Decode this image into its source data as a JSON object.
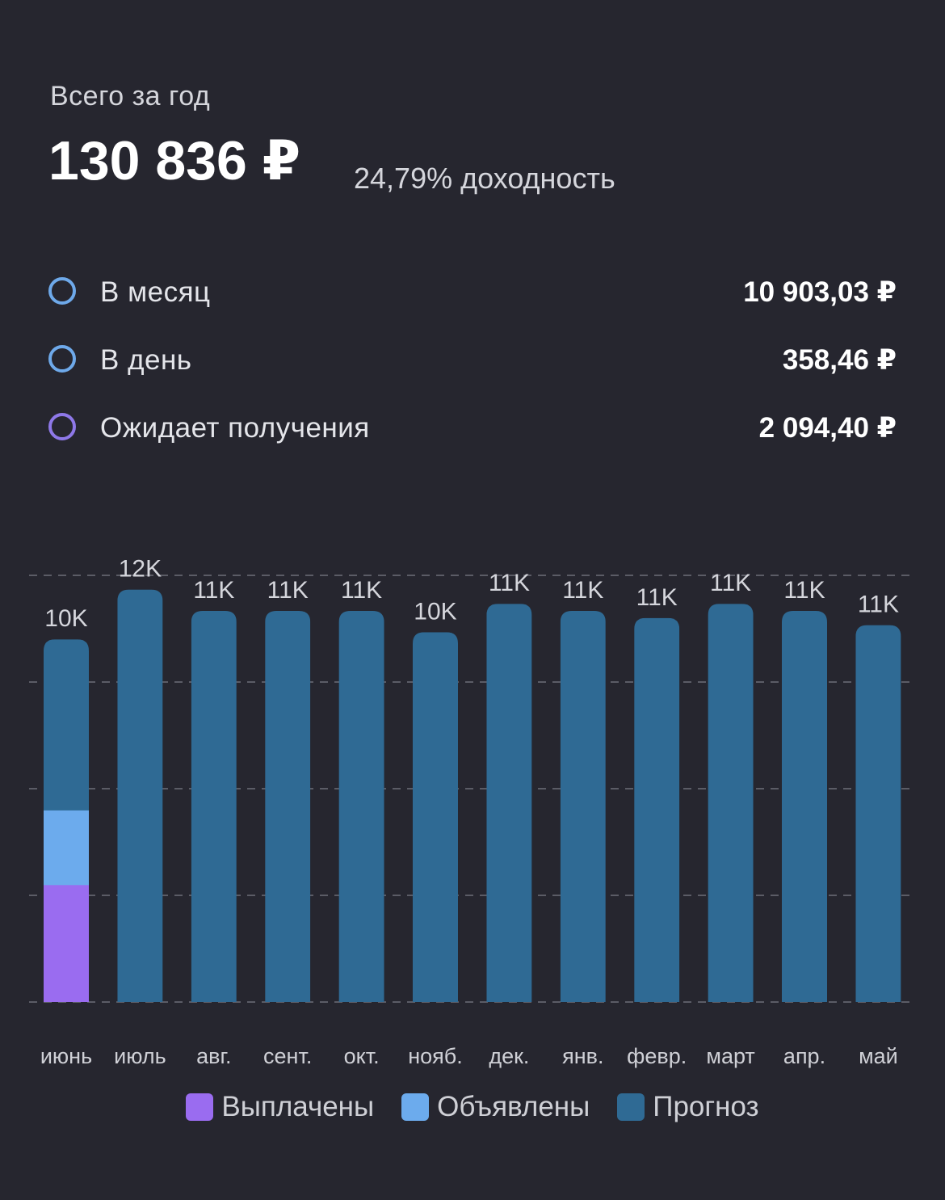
{
  "summary": {
    "title": "Всего за год",
    "total": "130 836 ₽",
    "yield": "24,79% доходность"
  },
  "stats": [
    {
      "label": "В месяц",
      "value": "10 903,03 ₽",
      "ring_color": "#6ea9ea"
    },
    {
      "label": "В день",
      "value": "358,46 ₽",
      "ring_color": "#6ea9ea"
    },
    {
      "label": "Ожидает получения",
      "value": "2 094,40 ₽",
      "ring_color": "#8e78e8"
    }
  ],
  "chart_data": {
    "type": "bar",
    "stacked": true,
    "categories": [
      "июнь",
      "июль",
      "авг.",
      "сент.",
      "окт.",
      "нояб.",
      "дек.",
      "янв.",
      "февр.",
      "март",
      "апр.",
      "май"
    ],
    "value_labels": [
      "10K",
      "12K",
      "11K",
      "11K",
      "11K",
      "10K",
      "11K",
      "11K",
      "11K",
      "11K",
      "11K",
      "11K"
    ],
    "series": [
      {
        "name": "Выплачены",
        "color": "#9a6cf0",
        "values": [
          3300,
          0,
          0,
          0,
          0,
          0,
          0,
          0,
          0,
          0,
          0,
          0
        ]
      },
      {
        "name": "Объявлены",
        "color": "#6cabed",
        "values": [
          2100,
          0,
          0,
          0,
          0,
          0,
          0,
          0,
          0,
          0,
          0,
          0
        ]
      },
      {
        "name": "Прогноз",
        "color": "#2f6a94",
        "values": [
          4800,
          11600,
          11000,
          11000,
          11000,
          10400,
          11200,
          11000,
          10800,
          11200,
          11000,
          10600
        ]
      }
    ],
    "ylim": [
      0,
      12000
    ],
    "grid": true,
    "legend": "bottom"
  }
}
